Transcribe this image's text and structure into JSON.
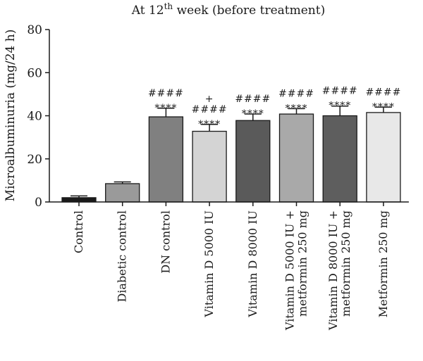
{
  "chart_data": {
    "type": "bar",
    "title_main": "At 12",
    "title_sup": "th",
    "title_rest": " week (before treatment)",
    "ylabel": "Microalbuminuria (mg/24 h)",
    "xlabel": "",
    "ylim": [
      0,
      80
    ],
    "yticks": [
      0,
      20,
      40,
      60,
      80
    ],
    "ytick_labels": [
      "0",
      "20",
      "40",
      "60",
      "80"
    ],
    "grid": false,
    "categories": [
      "Control",
      "Diabetic control",
      "DN control",
      "Vitamin D 5000 IU",
      "Vitamin D 8000 IU",
      "Vitamin D 5000 IU + metformin 250 mg",
      "Vitamin D 8000 IU + metformin 250 mg",
      "Metformin 250 mg"
    ],
    "category_lines": [
      [
        "Control"
      ],
      [
        "Diabetic control"
      ],
      [
        "DN control"
      ],
      [
        "Vitamin D 5000 IU"
      ],
      [
        "Vitamin D 8000 IU"
      ],
      [
        "Vitamin D 5000 IU +",
        "metformin 250 mg"
      ],
      [
        "Vitamin D 8000 IU +",
        "metformin 250 mg"
      ],
      [
        "Metformin 250 mg"
      ]
    ],
    "values": [
      2,
      8.5,
      39.5,
      32.8,
      37.8,
      40.8,
      40,
      41.5
    ],
    "errors": [
      0.8,
      0.8,
      4,
      3.2,
      3,
      2.5,
      4.5,
      2.5
    ],
    "colors": [
      "#1a1a1a",
      "#9a9a9a",
      "#808080",
      "#d4d4d4",
      "#5a5a5a",
      "#a9a9a9",
      "#5e5e5e",
      "#e8e8e8"
    ],
    "annotations": [
      [],
      [],
      [
        "####",
        "****"
      ],
      [
        "+",
        "####",
        "****"
      ],
      [
        "####",
        "****"
      ],
      [
        "####",
        "****"
      ],
      [
        "####",
        "****"
      ],
      [
        "####",
        "****"
      ]
    ]
  }
}
